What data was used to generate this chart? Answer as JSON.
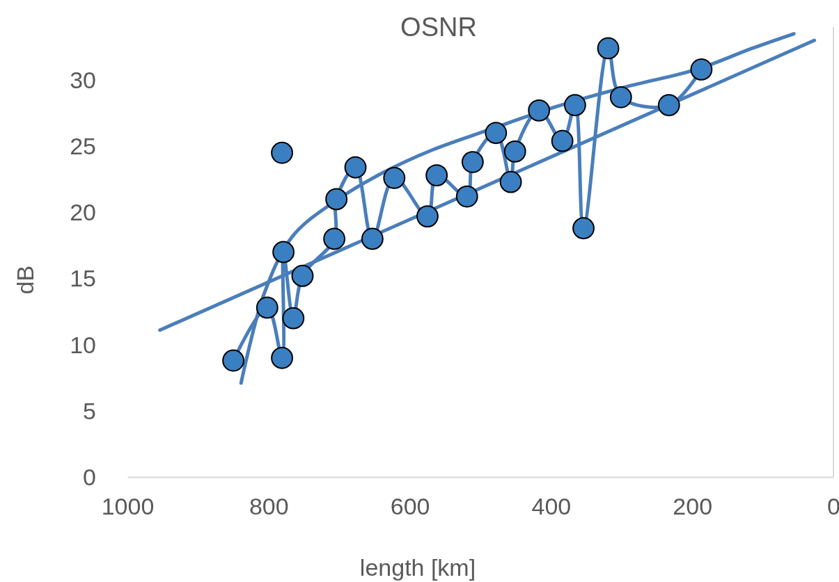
{
  "chart_data": {
    "type": "scatter",
    "title": "OSNR",
    "xlabel": "length [km]",
    "ylabel": "dB",
    "xlim": [
      1000,
      0
    ],
    "xticks": [
      1000,
      800,
      600,
      400,
      200,
      0
    ],
    "ylim": [
      0,
      34
    ],
    "yticks": [
      0,
      5,
      10,
      15,
      20,
      25,
      30
    ],
    "grid": false,
    "marker": "circle",
    "series": [
      {
        "color": "#3a7fc1",
        "x": [
          850,
          802,
          781,
          779,
          781,
          765,
          752,
          707,
          704,
          677,
          653,
          622,
          575,
          562,
          519,
          511,
          478,
          457,
          451,
          417,
          384,
          366,
          354,
          319,
          301,
          233,
          187
        ],
        "values": [
          8.8,
          12.8,
          24.5,
          17.0,
          9.0,
          12.0,
          15.2,
          18.0,
          21.0,
          23.4,
          18.0,
          22.6,
          19.7,
          22.8,
          21.2,
          23.8,
          26.0,
          22.3,
          24.6,
          27.7,
          25.4,
          28.1,
          18.8,
          32.4,
          28.7,
          28.1,
          30.8
        ]
      },
      {
        "type": "line",
        "marker": "none",
        "color": "#4a7ebb",
        "x": [
          850,
          802,
          781,
          779,
          765,
          752,
          707,
          704,
          677,
          653,
          622,
          575,
          562,
          519,
          511,
          478,
          457,
          451,
          417,
          384,
          366,
          354,
          319,
          301,
          233,
          187
        ],
        "values": [
          8.8,
          12.8,
          9.0,
          17.0,
          12.0,
          15.2,
          18.0,
          21.0,
          23.4,
          18.0,
          22.6,
          19.7,
          22.8,
          21.2,
          23.8,
          26.0,
          22.3,
          24.6,
          27.7,
          25.4,
          28.1,
          18.8,
          32.4,
          28.7,
          28.1,
          30.8
        ]
      },
      {
        "type": "line",
        "marker": "none",
        "color": "#4a7ebb",
        "x": [
          839,
          806,
          766,
          707,
          638,
          569,
          490,
          392,
          293,
          194,
          115,
          56
        ],
        "values": [
          7.1,
          13.9,
          18.2,
          20.8,
          23.0,
          24.7,
          26.2,
          28.0,
          29.5,
          30.8,
          32.4,
          33.5
        ]
      },
      {
        "type": "line",
        "marker": "none",
        "color": "#4a7ebb",
        "x": [
          954,
          27
        ],
        "values": [
          11.1,
          33.0
        ]
      }
    ]
  }
}
